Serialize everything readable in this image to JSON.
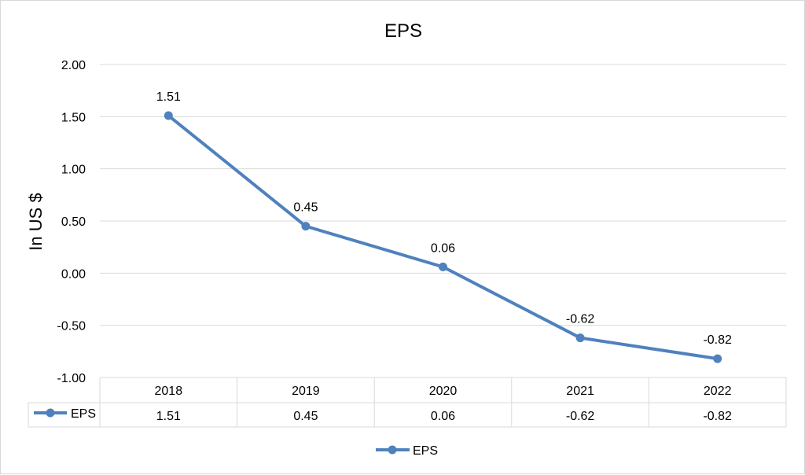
{
  "chart_data": {
    "type": "line",
    "title": "EPS",
    "ylabel": "In US $",
    "xlabel": "",
    "categories": [
      "2018",
      "2019",
      "2020",
      "2021",
      "2022"
    ],
    "series": [
      {
        "name": "EPS",
        "values": [
          1.51,
          0.45,
          0.06,
          -0.62,
          -0.82
        ],
        "color": "#4f81bd"
      }
    ],
    "data_labels": [
      "1.51",
      "0.45",
      "0.06",
      "-0.62",
      "-0.82"
    ],
    "ylim": [
      -1.0,
      2.0
    ],
    "yticks": [
      "2.00",
      "1.50",
      "1.00",
      "0.50",
      "0.00",
      "-0.50",
      "-1.00"
    ],
    "ytick_values": [
      2.0,
      1.5,
      1.0,
      0.5,
      0.0,
      -0.5,
      -1.0
    ],
    "grid": true,
    "data_table": {
      "row_label": "EPS",
      "values": [
        "1.51",
        "0.45",
        "0.06",
        "-0.62",
        "-0.82"
      ]
    },
    "legend": {
      "position": "bottom",
      "entries": [
        "EPS"
      ]
    }
  }
}
